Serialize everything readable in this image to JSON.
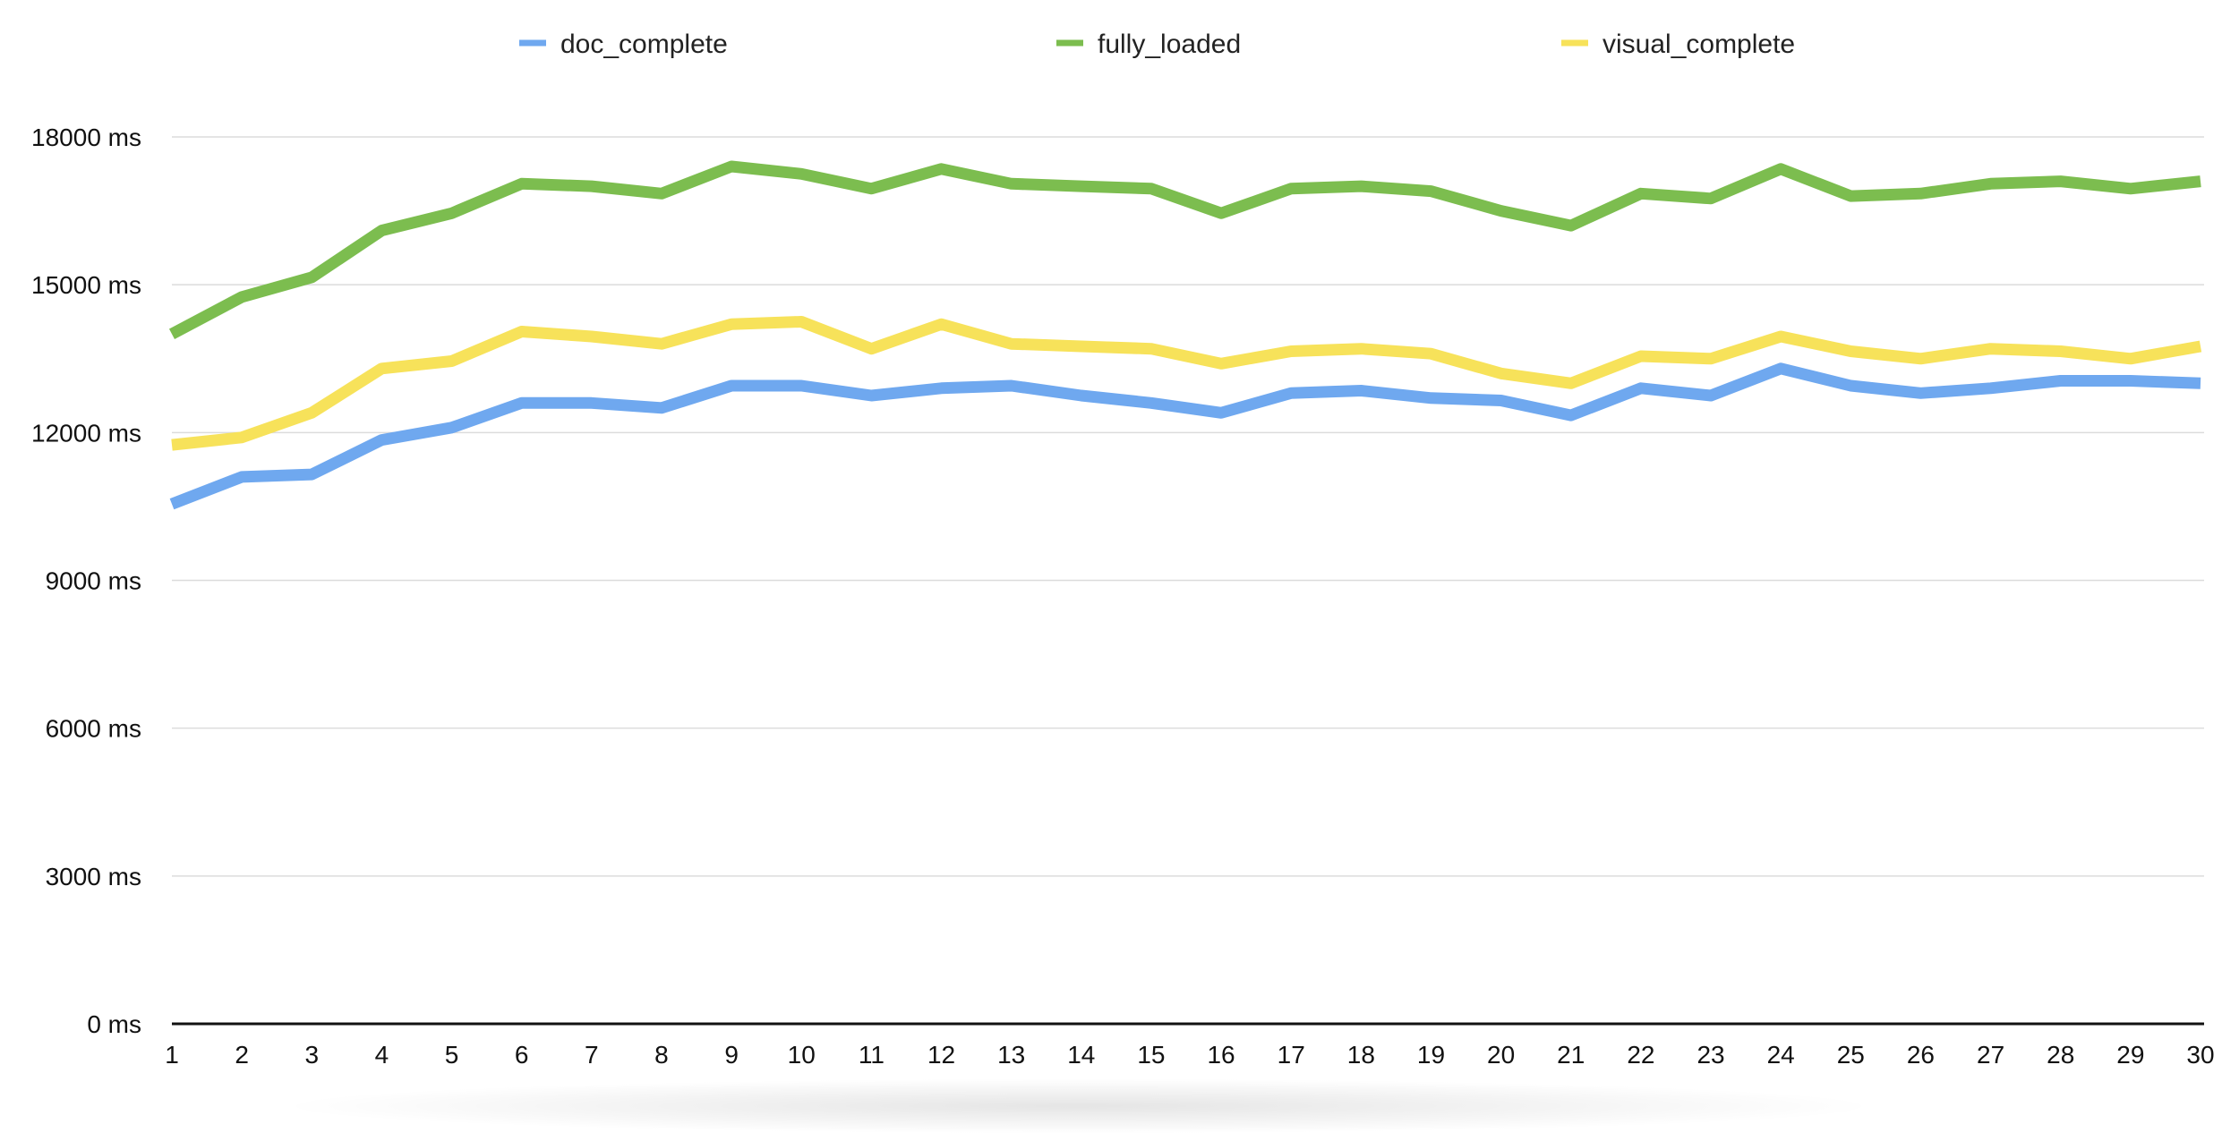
{
  "chart_data": {
    "type": "line",
    "title": "",
    "xlabel": "",
    "ylabel": "",
    "x": [
      1,
      2,
      3,
      4,
      5,
      6,
      7,
      8,
      9,
      10,
      11,
      12,
      13,
      14,
      15,
      16,
      17,
      18,
      19,
      20,
      21,
      22,
      23,
      24,
      25,
      26,
      27,
      28,
      29,
      30
    ],
    "ylim": [
      0,
      18000
    ],
    "yticks": [
      0,
      3000,
      6000,
      9000,
      12000,
      15000,
      18000
    ],
    "ytick_labels": [
      "0 ms",
      "3000 ms",
      "6000 ms",
      "9000 ms",
      "12000 ms",
      "15000 ms",
      "18000 ms"
    ],
    "grid": true,
    "legend_position": "top",
    "series": [
      {
        "name": "doc_complete",
        "color": "#6fa8ef",
        "values": [
          10550,
          11100,
          11150,
          11850,
          12100,
          12600,
          12600,
          12500,
          12950,
          12950,
          12750,
          12900,
          12950,
          12750,
          12600,
          12400,
          12800,
          12850,
          12700,
          12650,
          12350,
          12900,
          12750,
          13300,
          12950,
          12800,
          12900,
          13050,
          13050,
          13000
        ]
      },
      {
        "name": "fully_loaded",
        "color": "#7cbd4f",
        "values": [
          14000,
          14750,
          15150,
          16100,
          16450,
          17050,
          17000,
          16850,
          17400,
          17250,
          16950,
          17350,
          17050,
          17000,
          16950,
          16450,
          16950,
          17000,
          16900,
          16500,
          16200,
          16850,
          16750,
          17350,
          16800,
          16850,
          17050,
          17100,
          16950,
          17100
        ]
      },
      {
        "name": "visual_complete",
        "color": "#f7e25a",
        "values": [
          11750,
          11900,
          12400,
          13300,
          13450,
          14050,
          13950,
          13800,
          14200,
          14250,
          13700,
          14200,
          13800,
          13750,
          13700,
          13400,
          13650,
          13700,
          13600,
          13200,
          13000,
          13550,
          13500,
          13950,
          13650,
          13500,
          13700,
          13650,
          13500,
          13750
        ]
      }
    ]
  }
}
